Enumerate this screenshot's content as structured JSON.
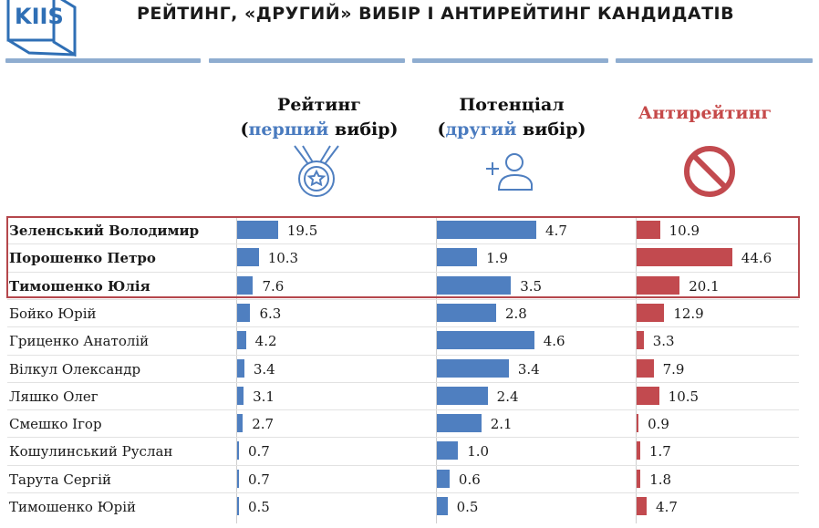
{
  "logo": {
    "text": "KIIS"
  },
  "title": "РЕЙТИНГ, «ДРУГИЙ» ВИБІР І АНТИРЕЙТИНГ КАНДИДАТІВ",
  "columns": {
    "rating": {
      "line1": "Рейтинг",
      "open": "(",
      "accent": "перший",
      "rest": " вибір)",
      "icon": "medal-icon"
    },
    "potential": {
      "line1": "Потенціал",
      "open": "(",
      "accent": "другий",
      "rest": " вибір)",
      "icon": "add-user-icon"
    },
    "anti": {
      "line1": "Антирейтинг",
      "icon": "prohibited-icon"
    }
  },
  "colors": {
    "blue": "#4f7fc0",
    "red": "#c24a4f",
    "accent": "#4a7bbf",
    "anti_title": "#c64a4a",
    "outline": "#b5474c"
  },
  "chart_data": {
    "type": "bar",
    "orientation": "horizontal",
    "categories": [
      "Зеленський Володимир",
      "Порошенко Петро",
      "Тимошенко Юлія",
      "Бойко Юрій",
      "Гриценко Анатолій",
      "Вілкул Олександр",
      "Ляшко Олег",
      "Смешко Ігор",
      "Кошулинський Руслан",
      "Тарута Сергій",
      "Тимошенко Юрій"
    ],
    "bold_categories": [
      "Зеленський Володимир",
      "Порошенко Петро",
      "Тимошенко Юлія"
    ],
    "series": [
      {
        "name": "Рейтинг (перший вибір)",
        "values": [
          19.5,
          10.3,
          7.6,
          6.3,
          4.2,
          3.4,
          3.1,
          2.7,
          0.7,
          0.7,
          0.5
        ],
        "labels": [
          "19.5",
          "10.3",
          "7.6",
          "6.3",
          "4.2",
          "3.4",
          "3.1",
          "2.7",
          "0.7",
          "0.7",
          "0.5"
        ]
      },
      {
        "name": "Потенціал (другий вибір)",
        "values": [
          4.7,
          1.9,
          3.5,
          2.8,
          4.6,
          3.4,
          2.4,
          2.1,
          1.0,
          0.6,
          0.5
        ],
        "labels": [
          "4.7",
          "1.9",
          "3.5",
          "2.8",
          "4.6",
          "3.4",
          "2.4",
          "2.1",
          "1.0",
          "0.6",
          "0.5"
        ]
      },
      {
        "name": "Антирейтинг",
        "values": [
          10.9,
          44.6,
          20.1,
          12.9,
          3.3,
          7.9,
          10.5,
          0.9,
          1.7,
          1.8,
          4.7
        ],
        "labels": [
          "10.9",
          "44.6",
          "20.1",
          "12.9",
          "3.3",
          "7.9",
          "10.5",
          "0.9",
          "1.7",
          "1.8",
          "4.7"
        ]
      }
    ]
  }
}
